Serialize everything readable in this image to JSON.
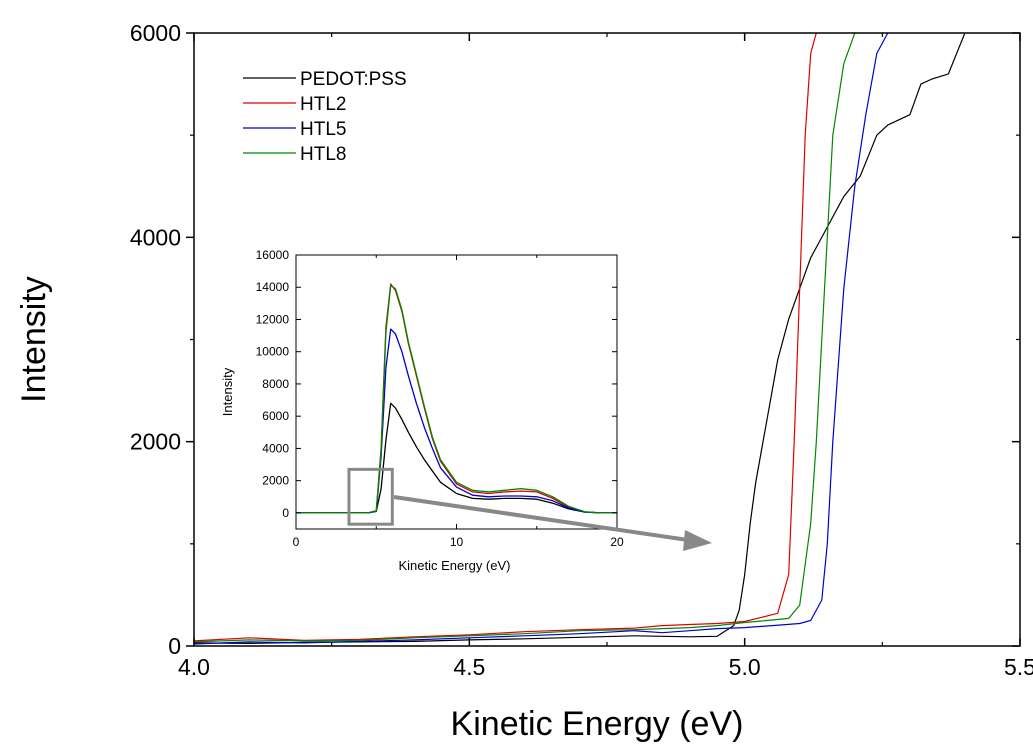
{
  "chart_data": [
    {
      "type": "line",
      "title": "",
      "xlabel": "Kinetic Energy (eV)",
      "ylabel": "Intensity",
      "xlim": [
        4.0,
        5.5
      ],
      "ylim": [
        0,
        6000
      ],
      "xticks": [
        4.0,
        4.5,
        5.0,
        5.5
      ],
      "xtick_labels": [
        "4.0",
        "4.5",
        "5.0",
        "5.5"
      ],
      "yticks": [
        0,
        2000,
        4000,
        6000
      ],
      "ytick_labels": [
        "0",
        "2000",
        "4000",
        "6000"
      ],
      "grid": false,
      "legend_position": "top-left",
      "series": [
        {
          "name": "PEDOT:PSS",
          "color": "#000000",
          "x": [
            4.0,
            4.1,
            4.2,
            4.3,
            4.4,
            4.5,
            4.6,
            4.7,
            4.8,
            4.85,
            4.9,
            4.95,
            4.98,
            4.99,
            5.0,
            5.01,
            5.02,
            5.04,
            5.06,
            5.08,
            5.1,
            5.12,
            5.15,
            5.18,
            5.21,
            5.24,
            5.26,
            5.28,
            5.3,
            5.32,
            5.34,
            5.37,
            5.4
          ],
          "y": [
            30,
            25,
            35,
            40,
            45,
            60,
            70,
            85,
            100,
            95,
            90,
            95,
            200,
            350,
            700,
            1200,
            1600,
            2200,
            2800,
            3200,
            3500,
            3800,
            4100,
            4400,
            4600,
            5000,
            5100,
            5150,
            5200,
            5500,
            5550,
            5600,
            6000
          ]
        },
        {
          "name": "HTL2",
          "color": "#e00000",
          "x": [
            4.0,
            4.1,
            4.2,
            4.3,
            4.4,
            4.5,
            4.6,
            4.7,
            4.8,
            4.85,
            4.9,
            4.95,
            5.0,
            5.03,
            5.06,
            5.08,
            5.09,
            5.1,
            5.11,
            5.12,
            5.13
          ],
          "y": [
            50,
            80,
            55,
            65,
            90,
            110,
            140,
            160,
            175,
            200,
            210,
            220,
            240,
            280,
            320,
            700,
            2000,
            3500,
            5000,
            5800,
            6000
          ]
        },
        {
          "name": "HTL5",
          "color": "#0000d0",
          "x": [
            4.0,
            4.1,
            4.2,
            4.3,
            4.4,
            4.5,
            4.6,
            4.7,
            4.8,
            4.85,
            4.9,
            4.95,
            5.0,
            5.05,
            5.1,
            5.12,
            5.14,
            5.15,
            5.16,
            5.18,
            5.2,
            5.22,
            5.24,
            5.26
          ],
          "y": [
            20,
            40,
            30,
            45,
            60,
            80,
            100,
            120,
            150,
            130,
            150,
            170,
            180,
            200,
            220,
            250,
            450,
            1000,
            2000,
            3500,
            4500,
            5200,
            5800,
            6000
          ]
        },
        {
          "name": "HTL8",
          "color": "#008800",
          "x": [
            4.0,
            4.1,
            4.2,
            4.3,
            4.4,
            4.5,
            4.6,
            4.7,
            4.8,
            4.85,
            4.9,
            4.95,
            5.0,
            5.04,
            5.08,
            5.1,
            5.12,
            5.13,
            5.14,
            5.15,
            5.16,
            5.18,
            5.2
          ],
          "y": [
            40,
            60,
            50,
            55,
            80,
            100,
            120,
            150,
            160,
            170,
            180,
            200,
            230,
            250,
            270,
            400,
            1200,
            2000,
            3000,
            4000,
            5000,
            5700,
            6000
          ]
        }
      ]
    },
    {
      "type": "line",
      "title": "",
      "xlabel": "Kinetic Energy (eV)",
      "ylabel": "Intensity",
      "xlim": [
        0,
        20
      ],
      "ylim": [
        -1000,
        16000
      ],
      "xticks": [
        0,
        10,
        20
      ],
      "xtick_labels": [
        "0",
        "10",
        "20"
      ],
      "yticks": [
        0,
        2000,
        4000,
        6000,
        8000,
        10000,
        12000,
        14000,
        16000
      ],
      "ytick_labels": [
        "0",
        "2000",
        "4000",
        "6000",
        "8000",
        "10000",
        "12000",
        "14000",
        "16000"
      ],
      "grid": false,
      "series": [
        {
          "name": "PEDOT:PSS",
          "color": "#000000",
          "x": [
            0,
            4.5,
            5.0,
            5.3,
            5.6,
            5.9,
            6.2,
            6.6,
            7.0,
            7.5,
            8.0,
            8.5,
            9.0,
            10,
            11,
            12,
            13,
            14,
            15,
            16,
            17,
            18,
            19,
            20
          ],
          "y": [
            0,
            0,
            100,
            1500,
            4500,
            6800,
            6500,
            5800,
            5000,
            4100,
            3300,
            2600,
            1900,
            1200,
            900,
            850,
            900,
            900,
            850,
            600,
            250,
            50,
            0,
            0
          ]
        },
        {
          "name": "HTL2",
          "color": "#e00000",
          "x": [
            0,
            4.5,
            5.0,
            5.3,
            5.6,
            5.9,
            6.2,
            6.6,
            7.0,
            7.5,
            8.0,
            8.5,
            9.0,
            10,
            11,
            12,
            13,
            14,
            15,
            16,
            17,
            18,
            19,
            20
          ],
          "y": [
            0,
            0,
            150,
            4000,
            11500,
            14200,
            13800,
            12500,
            10500,
            8500,
            6500,
            4600,
            3200,
            1800,
            1300,
            1200,
            1300,
            1350,
            1300,
            900,
            350,
            60,
            0,
            0
          ]
        },
        {
          "name": "HTL5",
          "color": "#0000d0",
          "x": [
            0,
            4.5,
            5.0,
            5.3,
            5.6,
            5.9,
            6.2,
            6.6,
            7.0,
            7.5,
            8.0,
            8.5,
            9.0,
            10,
            11,
            12,
            13,
            14,
            15,
            16,
            17,
            18,
            19,
            20
          ],
          "y": [
            0,
            0,
            100,
            3500,
            9000,
            11400,
            11100,
            10000,
            8500,
            6800,
            5300,
            4000,
            2800,
            1600,
            1100,
            1000,
            1050,
            1050,
            1000,
            750,
            300,
            50,
            0,
            0
          ]
        },
        {
          "name": "HTL8",
          "color": "#008800",
          "x": [
            0,
            4.5,
            5.0,
            5.3,
            5.6,
            5.9,
            6.2,
            6.6,
            7.0,
            7.5,
            8.0,
            8.5,
            9.0,
            10,
            11,
            12,
            13,
            14,
            15,
            16,
            17,
            18,
            19,
            20
          ],
          "y": [
            0,
            0,
            120,
            3800,
            11200,
            14100,
            13900,
            12600,
            10600,
            8600,
            6600,
            4700,
            3300,
            1900,
            1400,
            1300,
            1400,
            1500,
            1400,
            1000,
            400,
            70,
            0,
            0
          ]
        }
      ]
    }
  ]
}
